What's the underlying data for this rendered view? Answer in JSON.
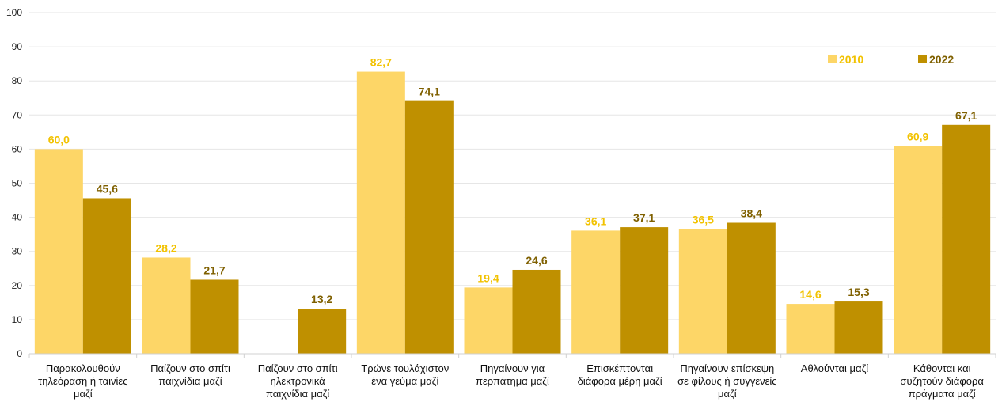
{
  "chart_data": {
    "type": "bar",
    "categories": [
      [
        "Παρακολουθούν",
        "τηλεόραση ή ταινίες",
        "μαζί"
      ],
      [
        "Παίζουν στο σπίτι",
        "παιχνίδια μαζί"
      ],
      [
        "Παίζουν στο σπίτι",
        "ηλεκτρονικά",
        "παιχνίδια μαζί"
      ],
      [
        "Τρώνε τουλάχιστον",
        "ένα γεύμα μαζί"
      ],
      [
        "Πηγαίνουν για",
        "περπάτημα μαζί"
      ],
      [
        "Επισκέπτονται",
        "διάφορα μέρη μαζί"
      ],
      [
        "Πηγαίνουν επίσκεψη",
        "σε φίλους ή συγγενείς",
        "μαζί"
      ],
      [
        "Αθλούνται μαζί"
      ],
      [
        "Κάθονται και",
        "συζητούν διάφορα",
        "πράγματα μαζί"
      ]
    ],
    "series": [
      {
        "name": "2010",
        "color": "#FDD667",
        "label_color": "#F2C200",
        "values": [
          60.0,
          28.2,
          null,
          82.7,
          19.4,
          36.1,
          36.5,
          14.6,
          60.9
        ],
        "labels": [
          "60,0",
          "28,2",
          "",
          "82,7",
          "19,4",
          "36,1",
          "36,5",
          "14,6",
          "60,9"
        ]
      },
      {
        "name": "2022",
        "color": "#BF9000",
        "label_color": "#7F6000",
        "values": [
          45.6,
          21.7,
          13.2,
          74.1,
          24.6,
          37.1,
          38.4,
          15.3,
          67.1
        ],
        "labels": [
          "45,6",
          "21,7",
          "13,2",
          "74,1",
          "24,6",
          "37,1",
          "38,4",
          "15,3",
          "67,1"
        ]
      }
    ],
    "ylim": [
      0,
      100
    ],
    "yticks": [
      0,
      10,
      20,
      30,
      40,
      50,
      60,
      70,
      80,
      90,
      100
    ],
    "grid": true,
    "legend": "top-right",
    "title": "",
    "xlabel": "",
    "ylabel": ""
  }
}
